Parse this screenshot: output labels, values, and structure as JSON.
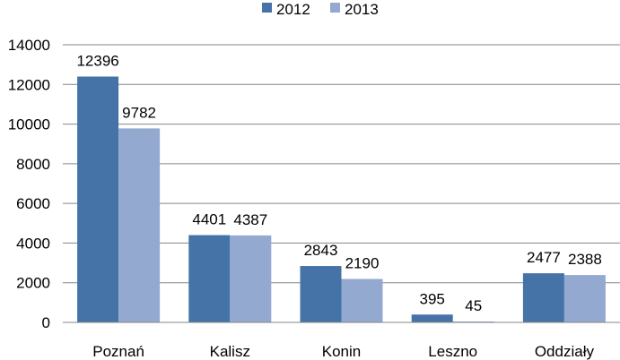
{
  "chart_data": {
    "type": "bar",
    "title": "",
    "xlabel": "",
    "ylabel": "",
    "categories": [
      "Poznań",
      "Kalisz",
      "Konin",
      "Leszno",
      "Oddziały"
    ],
    "series": [
      {
        "name": "2012",
        "values": [
          12396,
          4401,
          2843,
          395,
          2477
        ],
        "color": "#4572A7"
      },
      {
        "name": "2013",
        "values": [
          9782,
          4387,
          2190,
          45,
          2388
        ],
        "color": "#93A9CF"
      }
    ],
    "ylim": [
      0,
      14000
    ],
    "yticks": [
      "0",
      "2000",
      "4000",
      "6000",
      "8000",
      "10000",
      "12000",
      "14000"
    ],
    "grid": true,
    "legend_position": "top-center"
  }
}
